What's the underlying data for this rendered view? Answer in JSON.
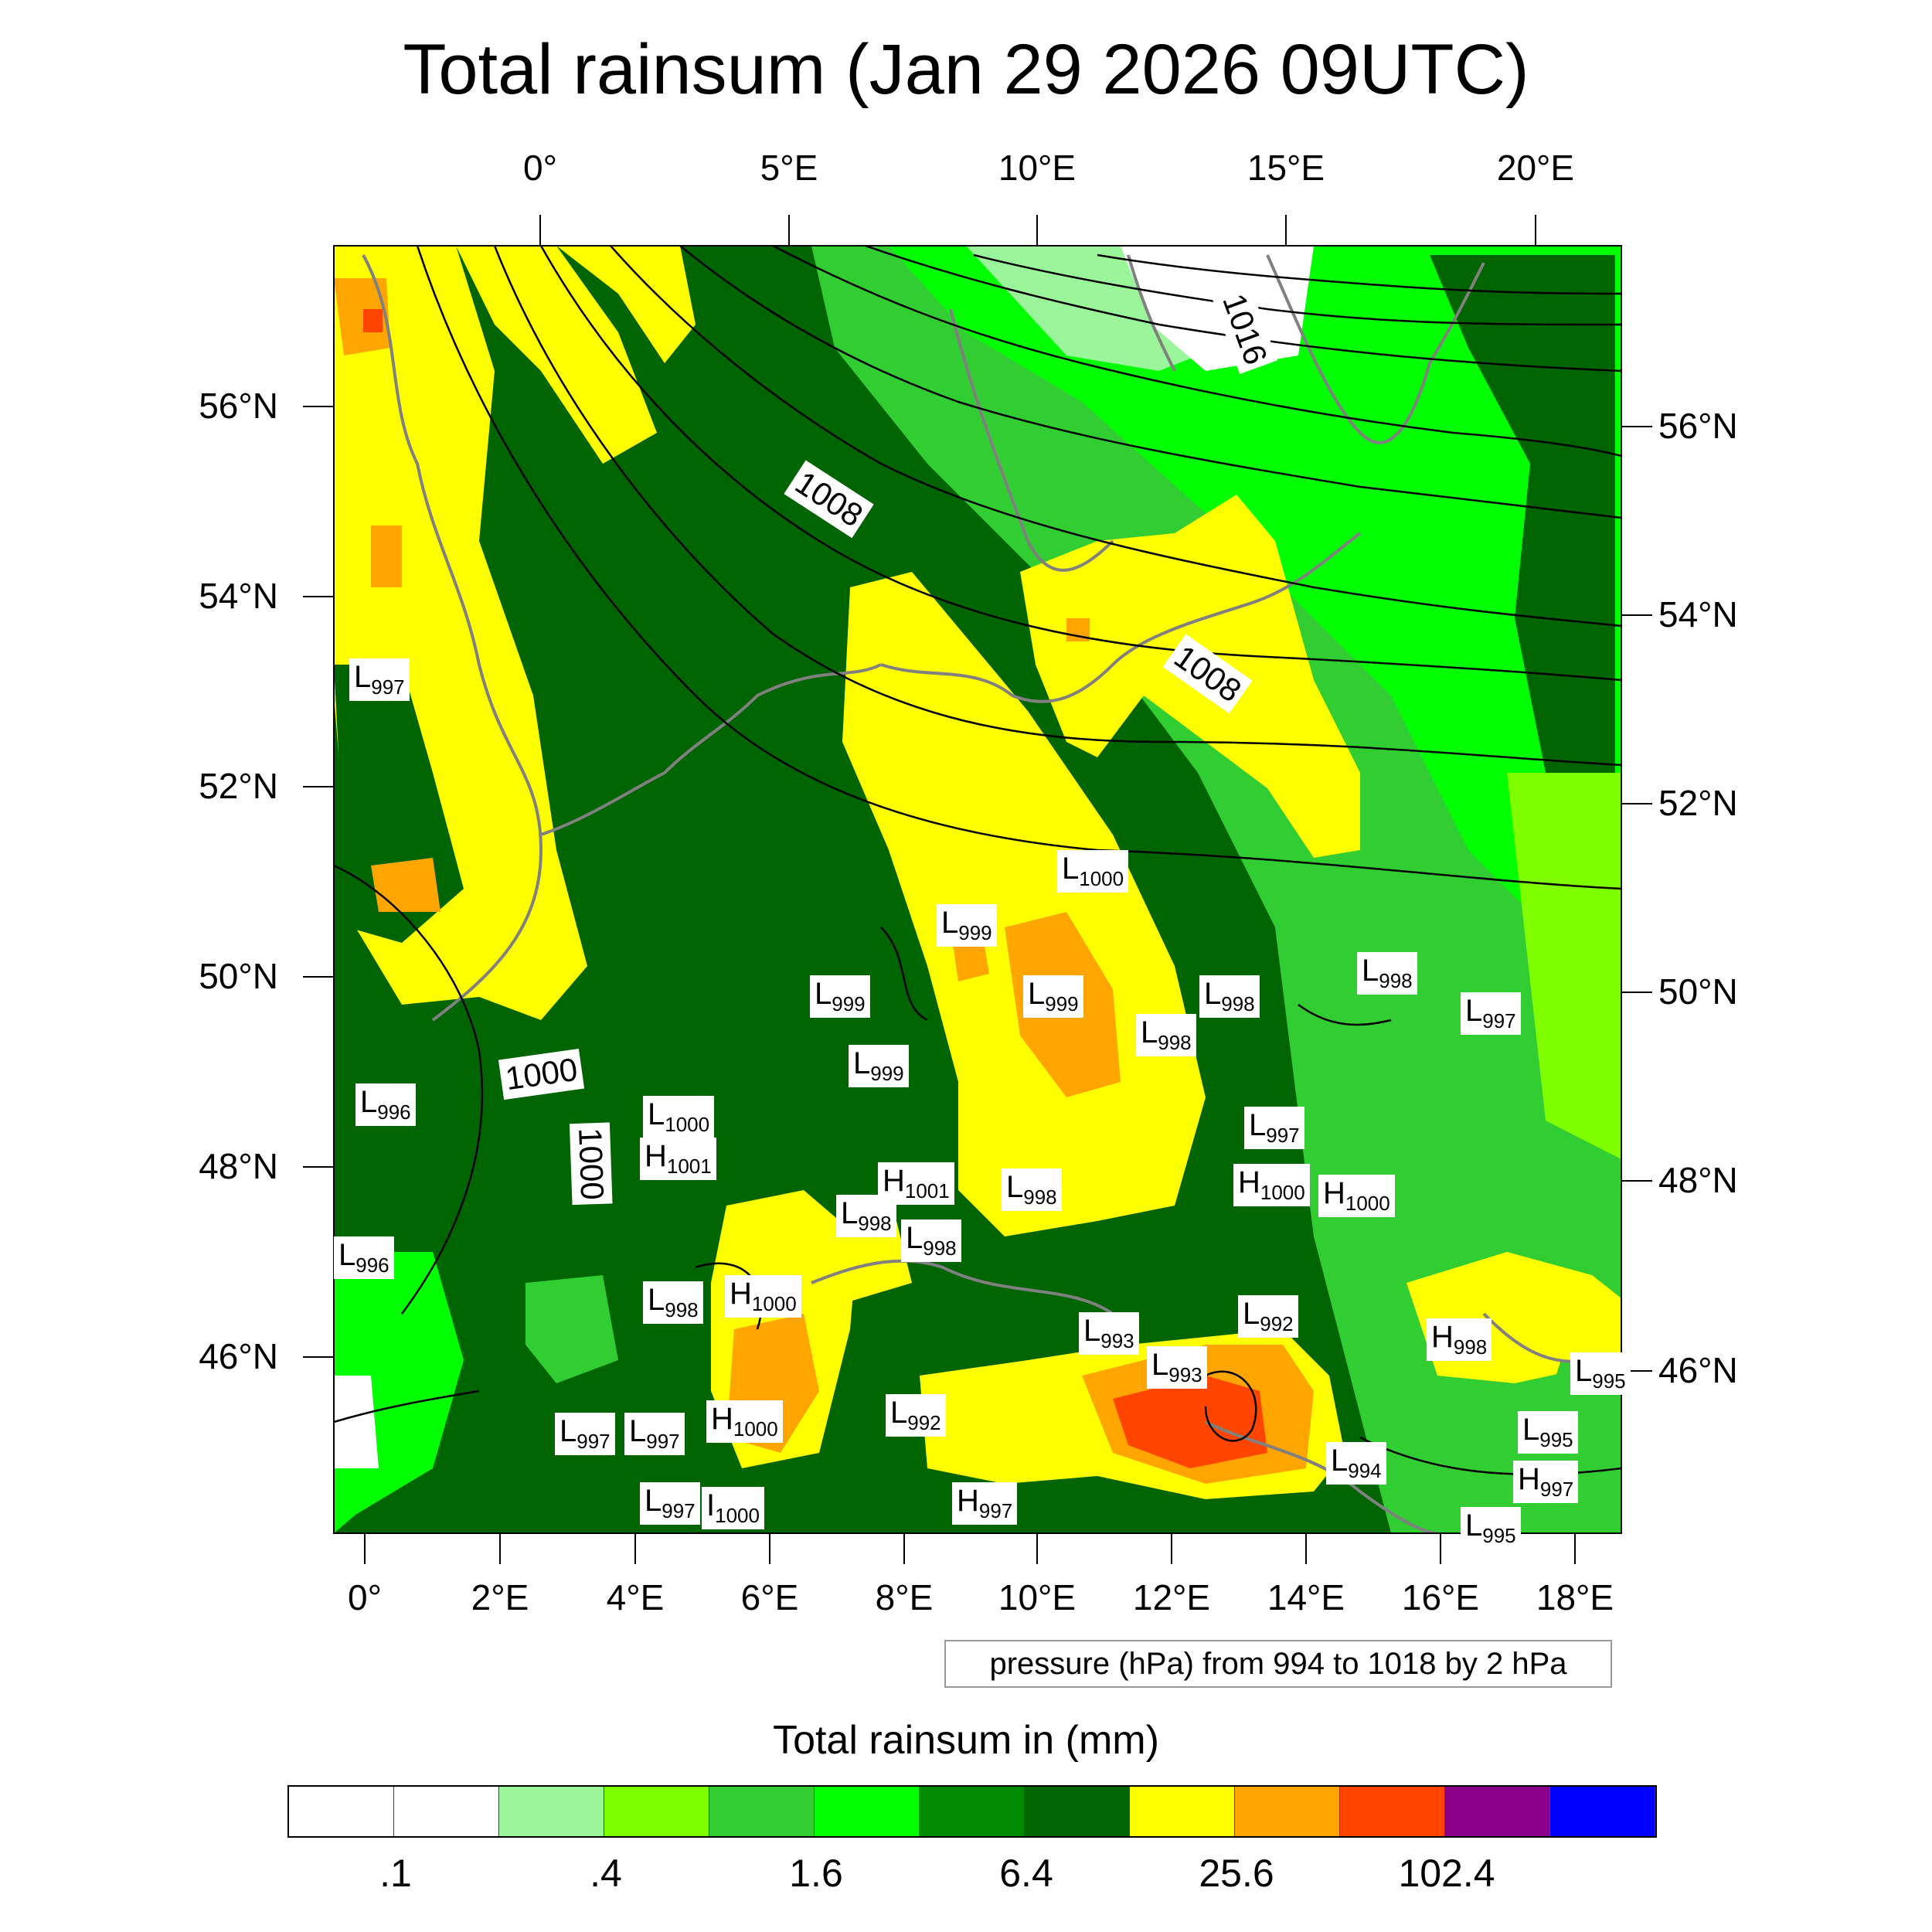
{
  "title": "Total rainsum (Jan 29 2026 09UTC)",
  "axes": {
    "top_lon": [
      "0°",
      "5°E",
      "10°E",
      "15°E",
      "20°E"
    ],
    "bottom_lon": [
      "0°",
      "2°E",
      "4°E",
      "6°E",
      "8°E",
      "10°E",
      "12°E",
      "14°E",
      "16°E",
      "18°E"
    ],
    "left_lat": [
      "56°N",
      "54°N",
      "52°N",
      "50°N",
      "48°N",
      "46°N"
    ],
    "right_lat": [
      "56°N",
      "54°N",
      "52°N",
      "50°N",
      "48°N",
      "46°N"
    ]
  },
  "contour_note": "pressure (hPa) from 994 to 1018 by 2 hPa",
  "isobar_labels": [
    "1008",
    "1008",
    "1016",
    "1000",
    "1000"
  ],
  "pressure_centers": [
    {
      "t": "L",
      "v": "997"
    },
    {
      "t": "L",
      "v": "1000"
    },
    {
      "t": "L",
      "v": "999"
    },
    {
      "t": "L",
      "v": "999"
    },
    {
      "t": "L",
      "v": "999"
    },
    {
      "t": "L",
      "v": "998"
    },
    {
      "t": "L",
      "v": "998"
    },
    {
      "t": "L",
      "v": "998"
    },
    {
      "t": "L",
      "v": "997"
    },
    {
      "t": "L",
      "v": "999"
    },
    {
      "t": "L",
      "v": "996"
    },
    {
      "t": "L",
      "v": "1000"
    },
    {
      "t": "H",
      "v": "1001"
    },
    {
      "t": "H",
      "v": "1001"
    },
    {
      "t": "L",
      "v": "998"
    },
    {
      "t": "L",
      "v": "997"
    },
    {
      "t": "H",
      "v": "1000"
    },
    {
      "t": "H",
      "v": "1000"
    },
    {
      "t": "L",
      "v": "998"
    },
    {
      "t": "L",
      "v": "998"
    },
    {
      "t": "L",
      "v": "996"
    },
    {
      "t": "L",
      "v": "998"
    },
    {
      "t": "H",
      "v": "1000"
    },
    {
      "t": "L",
      "v": "993"
    },
    {
      "t": "L",
      "v": "992"
    },
    {
      "t": "L",
      "v": "993"
    },
    {
      "t": "H",
      "v": "998"
    },
    {
      "t": "L",
      "v": "997"
    },
    {
      "t": "L",
      "v": "997"
    },
    {
      "t": "H",
      "v": "1000"
    },
    {
      "t": "L",
      "v": "992"
    },
    {
      "t": "L",
      "v": "994"
    },
    {
      "t": "L",
      "v": "995"
    },
    {
      "t": "L",
      "v": "995"
    },
    {
      "t": "H",
      "v": "997"
    },
    {
      "t": "L",
      "v": "997"
    },
    {
      "t": "I",
      "v": "1000"
    },
    {
      "t": "H",
      "v": "997"
    },
    {
      "t": "L",
      "v": "995"
    }
  ],
  "colorbar": {
    "title": "Total rainsum in (mm)",
    "colors": [
      "#ffffff",
      "#ffffff",
      "#9bf59b",
      "#80ff00",
      "#32cd32",
      "#00ff00",
      "#008b00",
      "#006400",
      "#ffff00",
      "#ffa500",
      "#ff4500",
      "#8b008b",
      "#0000ff"
    ],
    "labels": [
      ".1",
      ".4",
      "1.6",
      "6.4",
      "25.6",
      "102.4"
    ]
  }
}
